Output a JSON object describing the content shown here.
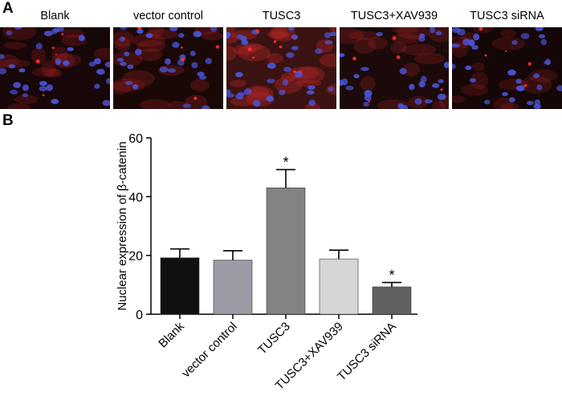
{
  "panel_a": {
    "letter": "A",
    "images": [
      {
        "label": "Blank",
        "bg": "#170708",
        "red_density": 0.35
      },
      {
        "label": "vector control",
        "bg": "#1a0807",
        "red_density": 0.45
      },
      {
        "label": "TUSC3",
        "bg": "#3a1211",
        "red_density": 0.9
      },
      {
        "label": "TUSC3+XAV939",
        "bg": "#1c0a0b",
        "red_density": 0.4
      },
      {
        "label": "TUSC3 siRNA",
        "bg": "#150707",
        "red_density": 0.3
      }
    ],
    "nucleus_color": "#4a55d8",
    "cytoplasm_color": "#c0282a"
  },
  "panel_b": {
    "letter": "B"
  },
  "chart_data": {
    "type": "bar",
    "categories": [
      "Blank",
      "vector control",
      "TUSC3",
      "TUSC3+XAV939",
      "TUSC3 siRNA"
    ],
    "values": [
      19.2,
      18.4,
      43.0,
      18.8,
      9.3
    ],
    "errors": [
      3.0,
      3.2,
      6.2,
      3.0,
      1.5
    ],
    "colors": [
      "#111111",
      "#9c9ba5",
      "#838383",
      "#d6d6d6",
      "#616161"
    ],
    "significance": [
      "",
      "",
      "*",
      "",
      "*"
    ],
    "ylabel": "Nuclear expression of  β-catenin",
    "xlabel": "",
    "ylim": [
      0,
      60
    ],
    "yticks": [
      0,
      20,
      40,
      60
    ],
    "grid": false,
    "legend": "none"
  }
}
